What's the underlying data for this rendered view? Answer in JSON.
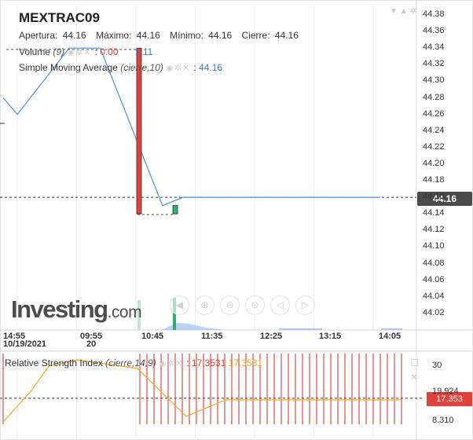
{
  "header": {
    "title": "MEXTRAC09",
    "open_label": "Apertura:",
    "open_value": "44.16",
    "high_label": "Máximo:",
    "high_value": "44.16",
    "low_label": "Mínimo:",
    "low_value": "44.16",
    "close_label": "Cierre:",
    "close_value": "44.16"
  },
  "volume_indicator": {
    "label": "Volume",
    "param": "(9)",
    "value_red": "0.00",
    "value_blue": "1.11"
  },
  "sma_indicator": {
    "label": "Simple Moving Average",
    "param": "(cierre,10)",
    "value": "44.16"
  },
  "rsi_indicator": {
    "label": "Relative Strength Index",
    "param": "(cierre,14,9)",
    "value_red": "17.3531",
    "value_orange": "17.3531"
  },
  "branding": {
    "logo_main": "Investing",
    "logo_suffix": ".com"
  },
  "price_tag": "44.16",
  "rsi_tag": "17.353",
  "icons": {
    "indicator_controls": [
      "eye-icon",
      "gear-icon",
      "close-icon"
    ],
    "zoom_controls": [
      "speaker-icon",
      "zoom-in-icon",
      "zoom-out-icon",
      "zoom-fit-icon",
      "back-icon",
      "forward-icon"
    ],
    "corner_controls": [
      "chevron-down-icon",
      "bell-icon",
      "gear-icon"
    ]
  },
  "colors": {
    "line": "#4a90e2",
    "bar_up": "#2eaf6a",
    "bar_down": "#e0413a",
    "rsi_line": "#f5a623",
    "rsi_bars": "#d62a1f"
  },
  "chart_data": {
    "type": "line",
    "title": "MEXTRAC09",
    "x_tick_labels": [
      {
        "label": "14:55",
        "sublabel": "10/19/2021"
      },
      {
        "label": "09:55",
        "sublabel": "20"
      },
      {
        "label": "10:45"
      },
      {
        "label": "11:35"
      },
      {
        "label": "12:25"
      },
      {
        "label": "13:15"
      },
      {
        "label": "14:05"
      }
    ],
    "y_ticks": [
      "44.38",
      "44.36",
      "44.34",
      "44.32",
      "44.30",
      "44.28",
      "44.26",
      "44.24",
      "44.22",
      "44.20",
      "44.18",
      "44.16",
      "44.14",
      "44.12",
      "44.10",
      "44.08",
      "44.06",
      "44.04",
      "44.02"
    ],
    "ylim": [
      44.0,
      44.39
    ],
    "price_line": {
      "x": [
        -0.4,
        0,
        1.0,
        1.3,
        1.6,
        2.8,
        3.2,
        4.2,
        4.7,
        5.2,
        7.0
      ],
      "y": [
        44.28,
        44.26,
        44.34,
        44.34,
        44.34,
        44.15,
        44.16,
        44.16,
        44.16,
        44.16,
        44.16
      ]
    },
    "candles": [
      {
        "x": 1.8,
        "open": 44.34,
        "close": 44.14,
        "direction": "down"
      },
      {
        "x": 2.4,
        "open": 44.14,
        "close": 44.15,
        "direction": "up"
      }
    ],
    "current_price_line": 44.16,
    "rsi": {
      "y_ticks": [
        "30",
        "19.924",
        "8.310"
      ],
      "ylim": [
        0,
        40
      ],
      "current": 17.3531,
      "signal": 19.924
    }
  }
}
